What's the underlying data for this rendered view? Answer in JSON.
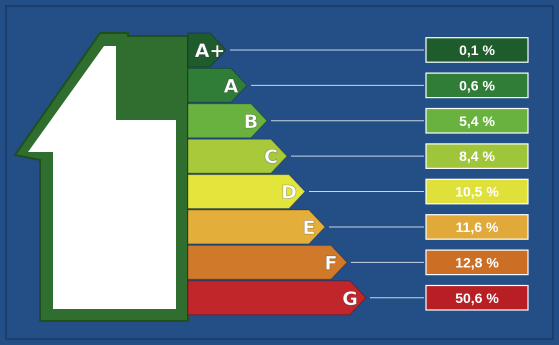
{
  "chart_data": {
    "type": "bar",
    "title": "",
    "categories": [
      "A+",
      "A",
      "B",
      "C",
      "D",
      "E",
      "F",
      "G"
    ],
    "values": [
      0.1,
      0.6,
      5.4,
      8.4,
      10.5,
      11.6,
      12.8,
      50.6
    ],
    "value_labels": [
      "0,1 %",
      "0,6 %",
      "5,4 %",
      "8,4 %",
      "10,5 %",
      "11,6 %",
      "12,8 %",
      "50,6 %"
    ],
    "class_colors": [
      "#1f5c2c",
      "#2f7d36",
      "#69b23f",
      "#a7c93a",
      "#e3e43c",
      "#e3ae3a",
      "#d0792a",
      "#c0262a"
    ],
    "box_colors": [
      "#1f5c2c",
      "#2f7d36",
      "#69b23f",
      "#9fc63a",
      "#dfe03a",
      "#e0a93a",
      "#cc6f25",
      "#b81f25"
    ],
    "background_color": "#244f86",
    "house_outline_color": "#2f6e2f",
    "grid": false,
    "legend": "none"
  }
}
